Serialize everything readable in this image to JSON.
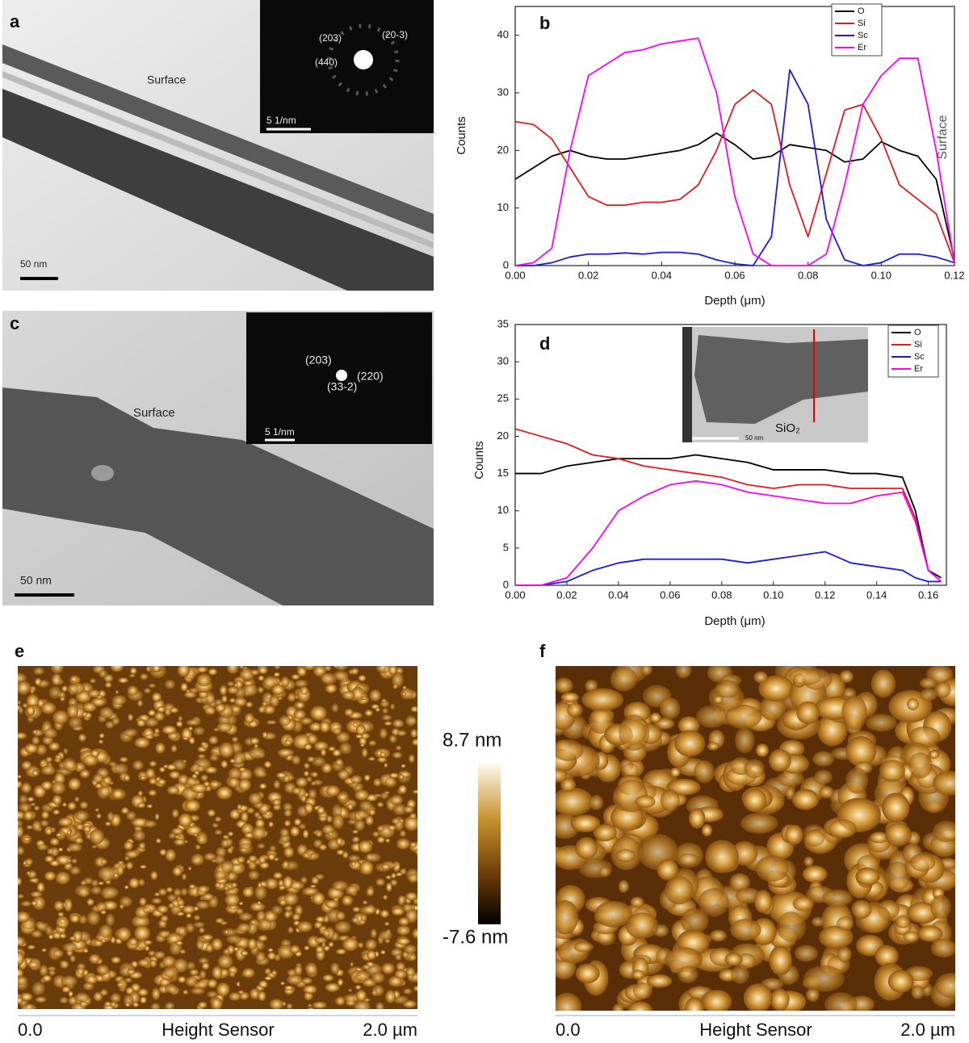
{
  "chart_data": [
    {
      "type": "line",
      "label": "b",
      "xlabel": "Depth (μm)",
      "ylabel": "Counts",
      "annotation": "Surface",
      "x": [
        0,
        0.005,
        0.01,
        0.015,
        0.02,
        0.025,
        0.03,
        0.035,
        0.04,
        0.045,
        0.05,
        0.055,
        0.06,
        0.065,
        0.07,
        0.075,
        0.08,
        0.085,
        0.09,
        0.095,
        0.1,
        0.105,
        0.11,
        0.115,
        0.12
      ],
      "series": [
        {
          "name": "O",
          "color": "#000000",
          "values": [
            15,
            17,
            19,
            20,
            19,
            18.5,
            18.5,
            19,
            19.5,
            20,
            21,
            23,
            21,
            18.5,
            19,
            21,
            20.5,
            20,
            18,
            18.5,
            21.5,
            20,
            19,
            15,
            1
          ]
        },
        {
          "name": "Si",
          "color": "#e41a1c",
          "values": [
            25,
            24.5,
            22,
            17,
            12,
            10.5,
            10.5,
            11,
            11,
            11.5,
            14,
            20,
            28,
            30.5,
            28,
            14,
            5,
            16,
            27,
            28,
            22,
            14,
            11.5,
            9,
            0.5
          ]
        },
        {
          "name": "Sc",
          "color": "#1a1ae0",
          "values": [
            0,
            0,
            0.5,
            1.5,
            2,
            2,
            2.2,
            2,
            2.3,
            2.3,
            2,
            1,
            0.3,
            0,
            5,
            34,
            28,
            8,
            1,
            0,
            0.5,
            2,
            2,
            1.5,
            0.5
          ]
        },
        {
          "name": "Er",
          "color": "#ff00ff",
          "values": [
            0,
            0.5,
            3,
            20,
            33,
            35,
            37,
            37.5,
            38.5,
            39,
            39.5,
            30,
            12,
            2,
            0,
            0,
            0,
            2,
            14,
            28,
            33,
            36,
            36,
            20,
            0.5
          ]
        }
      ],
      "xlim": [
        0,
        0.12
      ],
      "ylim": [
        0,
        45
      ],
      "xticks": [
        {
          "value": 0,
          "label": "0.00"
        },
        {
          "value": 0.02,
          "label": "0.02"
        },
        {
          "value": 0.04,
          "label": "0.04"
        },
        {
          "value": 0.06,
          "label": "0.06"
        },
        {
          "value": 0.08,
          "label": "0.08"
        },
        {
          "value": 0.1,
          "label": "0.10"
        },
        {
          "value": 0.12,
          "label": "0.12"
        }
      ],
      "yticks": [
        0,
        10,
        20,
        30,
        40
      ],
      "legend": "upper right"
    },
    {
      "type": "line",
      "label": "d",
      "xlabel": "Depth (μm)",
      "ylabel": "Counts",
      "x": [
        0,
        0.01,
        0.02,
        0.03,
        0.04,
        0.05,
        0.06,
        0.07,
        0.08,
        0.09,
        0.1,
        0.11,
        0.12,
        0.13,
        0.14,
        0.15,
        0.155,
        0.16,
        0.165
      ],
      "series": [
        {
          "name": "O",
          "color": "#000000",
          "values": [
            15,
            15,
            16,
            16.5,
            17,
            17,
            17,
            17.5,
            17,
            16.5,
            15.5,
            15.5,
            15.5,
            15,
            15,
            14.5,
            10,
            2,
            1
          ]
        },
        {
          "name": "Si",
          "color": "#e41a1c",
          "values": [
            21,
            20,
            19,
            17.5,
            17,
            16,
            15.5,
            15,
            14.5,
            13.5,
            13,
            13.5,
            13.5,
            13,
            13,
            13,
            9,
            2,
            0.5
          ]
        },
        {
          "name": "Sc",
          "color": "#1a1ae0",
          "values": [
            0,
            0,
            0.5,
            2,
            3,
            3.5,
            3.5,
            3.5,
            3.5,
            3,
            3.5,
            4,
            4.5,
            3,
            2.5,
            2,
            1,
            0.5,
            0.5
          ]
        },
        {
          "name": "Er",
          "color": "#ff00ff",
          "values": [
            0,
            0,
            1,
            5,
            10,
            12,
            13.5,
            14,
            13.5,
            12.5,
            12,
            11.5,
            11,
            11,
            12,
            12.5,
            8.5,
            2,
            0.5
          ]
        }
      ],
      "xlim": [
        0,
        0.167
      ],
      "ylim": [
        0,
        35
      ],
      "xticks": [
        {
          "value": 0,
          "label": "0.00"
        },
        {
          "value": 0.02,
          "label": "0.02"
        },
        {
          "value": 0.04,
          "label": "0.04"
        },
        {
          "value": 0.06,
          "label": "0.06"
        },
        {
          "value": 0.08,
          "label": "0.08"
        },
        {
          "value": 0.1,
          "label": "0.10"
        },
        {
          "value": 0.12,
          "label": "0.12"
        },
        {
          "value": 0.14,
          "label": "0.14"
        },
        {
          "value": 0.16,
          "label": "0.16"
        }
      ],
      "yticks": [
        0,
        5,
        10,
        15,
        20,
        25,
        30,
        35
      ],
      "legend": "upper right",
      "inset": {
        "material": "SiO₂",
        "scale_bar": "50 nm"
      }
    }
  ],
  "tem_images": [
    {
      "label": "a",
      "annotation": "Surface",
      "diffraction_spots": [
        "(203)",
        "(20-3)",
        "(440)"
      ],
      "diffraction_scale": "5 1/nm",
      "scale_bar": "50 nm"
    },
    {
      "label": "c",
      "annotation": "Surface",
      "diffraction_spots": [
        "(203)",
        "(220)",
        "(33-2)"
      ],
      "diffraction_scale": "5 1/nm",
      "scale_bar": "50 nm"
    }
  ],
  "afm_images": [
    {
      "label": "e",
      "x_start": "0.0",
      "x_label": "Height Sensor",
      "x_end": "2.0 µm"
    },
    {
      "label": "f",
      "x_start": "0.0",
      "x_label": "Height Sensor",
      "x_end": "2.0 µm"
    }
  ],
  "colorbar": {
    "max": "8.7 nm",
    "min": "-7.6 nm"
  }
}
